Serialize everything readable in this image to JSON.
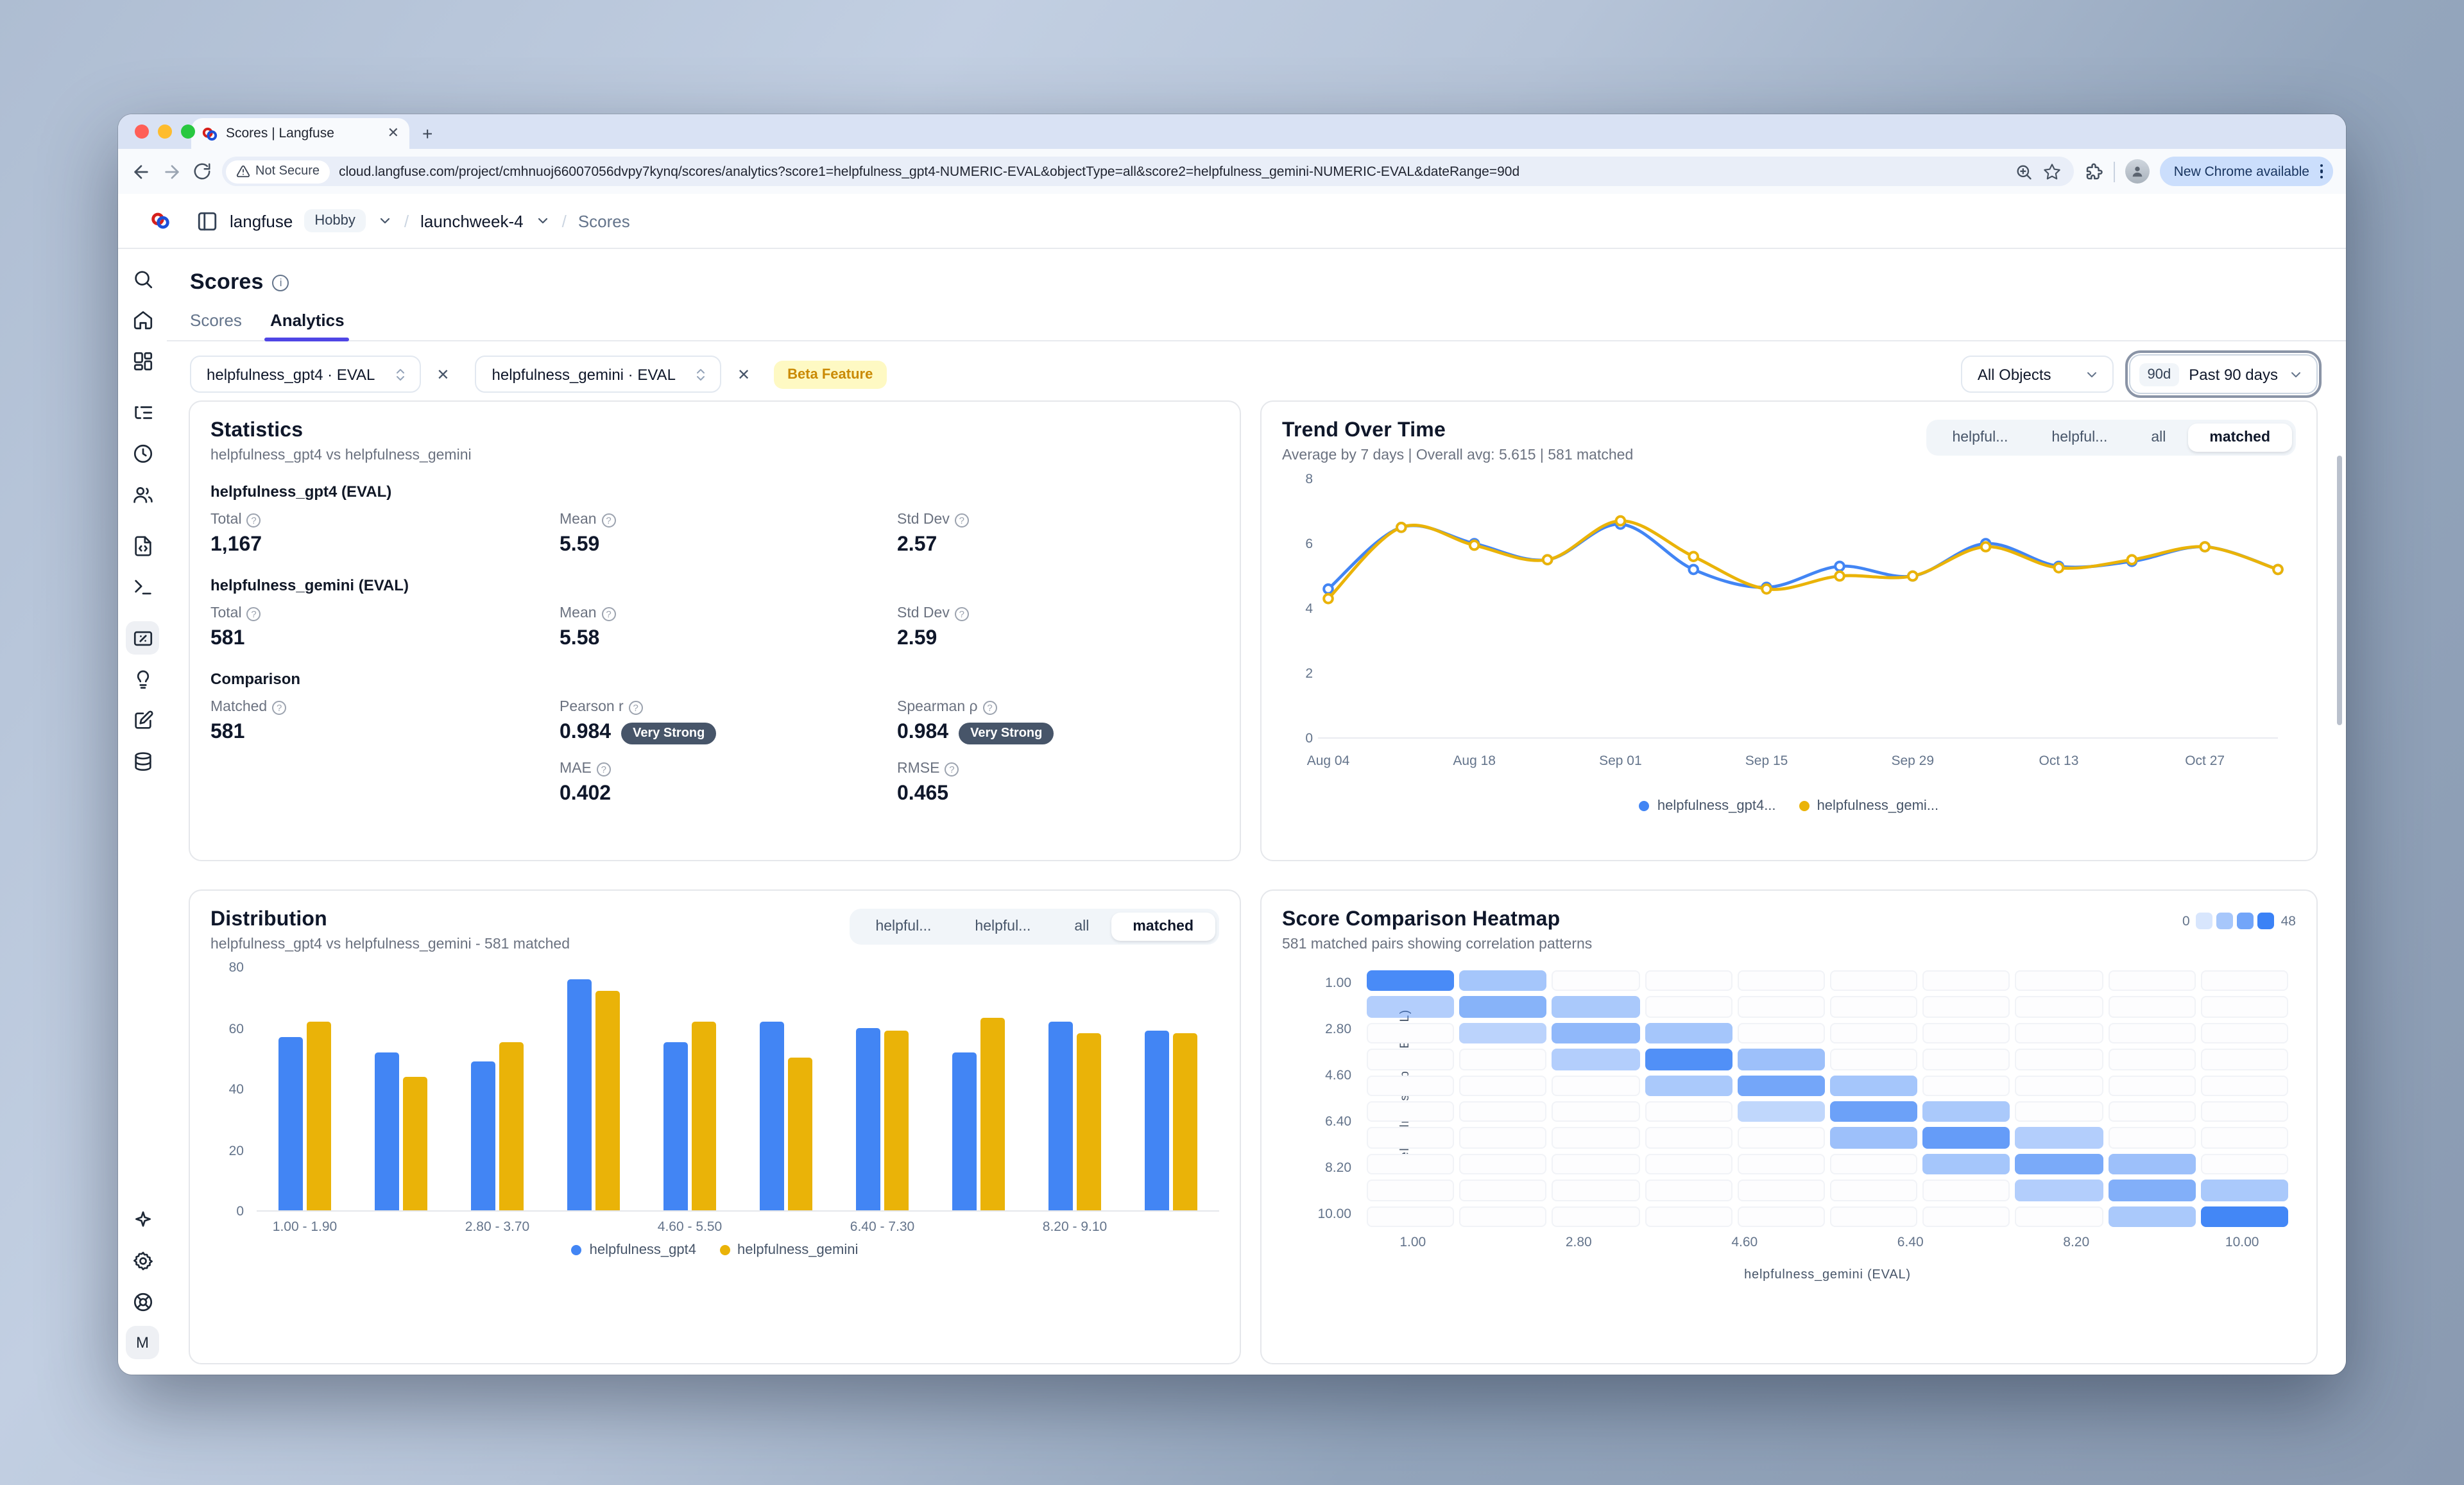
{
  "browser": {
    "tab_title": "Scores | Langfuse",
    "new_tab_label": "+",
    "not_secure": "Not Secure",
    "url": "cloud.langfuse.com/project/cmhnuoj66007056dvpy7kynq/scores/analytics?score1=helpfulness_gpt4-NUMERIC-EVAL&objectType=all&score2=helpfulness_gemini-NUMERIC-EVAL&dateRange=90d",
    "new_chrome": "New Chrome available"
  },
  "breadcrumb": {
    "org": "langfuse",
    "plan_badge": "Hobby",
    "project": "launchweek-4",
    "page": "Scores"
  },
  "sidebar": {
    "top": [
      {
        "name": "search",
        "icon": "search",
        "active": false
      },
      {
        "name": "home",
        "icon": "home",
        "active": false
      },
      {
        "name": "dashboards",
        "icon": "dashboard",
        "active": false
      },
      {
        "name": "tracing",
        "icon": "list-tree",
        "active": false,
        "gap": true
      },
      {
        "name": "sessions",
        "icon": "clock",
        "active": false
      },
      {
        "name": "users",
        "icon": "users",
        "active": false
      },
      {
        "name": "prompts",
        "icon": "file-code",
        "active": false,
        "gap": true
      },
      {
        "name": "playground",
        "icon": "terminal",
        "active": false
      },
      {
        "name": "scores",
        "icon": "square-percent",
        "active": true,
        "gap": true
      },
      {
        "name": "llm-as-judge",
        "icon": "lightbulb",
        "active": false
      },
      {
        "name": "annotation",
        "icon": "square-pen",
        "active": false
      },
      {
        "name": "datasets",
        "icon": "database",
        "active": false
      }
    ],
    "bottom": [
      {
        "name": "ask-ai",
        "icon": "sparkle"
      },
      {
        "name": "settings",
        "icon": "gear"
      },
      {
        "name": "support",
        "icon": "life-buoy"
      }
    ],
    "avatar_initial": "M"
  },
  "page": {
    "title": "Scores",
    "tabs": [
      {
        "label": "Scores",
        "active": false
      },
      {
        "label": "Analytics",
        "active": true
      }
    ]
  },
  "filters": {
    "score1": "helpfulness_gpt4 · EVAL",
    "score2": "helpfulness_gemini · EVAL",
    "close_label": "✕",
    "beta_badge": "Beta Feature",
    "objects": "All Objects",
    "date_badge": "90d",
    "date_range": "Past 90 days"
  },
  "statistics": {
    "title": "Statistics",
    "subtitle": "helpfulness_gpt4 vs helpfulness_gemini",
    "sections": [
      {
        "heading": "helpfulness_gpt4 (EVAL)",
        "stats": [
          {
            "label": "Total",
            "value": "1,167"
          },
          {
            "label": "Mean",
            "value": "5.59"
          },
          {
            "label": "Std Dev",
            "value": "2.57"
          }
        ]
      },
      {
        "heading": "helpfulness_gemini (EVAL)",
        "stats": [
          {
            "label": "Total",
            "value": "581"
          },
          {
            "label": "Mean",
            "value": "5.58"
          },
          {
            "label": "Std Dev",
            "value": "2.59"
          }
        ]
      },
      {
        "heading": "Comparison",
        "stats": [
          {
            "label": "Matched",
            "value": "581"
          },
          {
            "label": "Pearson r",
            "value": "0.984",
            "badge": "Very Strong"
          },
          {
            "label": "Spearman ρ",
            "value": "0.984",
            "badge": "Very Strong"
          },
          {
            "label": "",
            "value": ""
          },
          {
            "label": "MAE",
            "value": "0.402"
          },
          {
            "label": "RMSE",
            "value": "0.465"
          }
        ]
      }
    ]
  },
  "trend_panel": {
    "title": "Trend Over Time",
    "subtitle": "Average by 7 days | Overall avg: 5.615 | 581 matched",
    "segments": [
      "helpful...",
      "helpful...",
      "all",
      "matched"
    ],
    "active_segment": 3
  },
  "distribution_panel": {
    "title": "Distribution",
    "subtitle": "helpfulness_gpt4 vs helpfulness_gemini - 581 matched",
    "segments": [
      "helpful...",
      "helpful...",
      "all",
      "matched"
    ],
    "active_segment": 3
  },
  "heatmap_panel": {
    "title": "Score Comparison Heatmap",
    "subtitle": "581 matched pairs showing correlation patterns",
    "scale_min": "0",
    "scale_max": "48"
  },
  "colors": {
    "series_blue": "#4285f4",
    "series_yellow": "#eab308",
    "heatmap_blue": "#3b82f6",
    "accent_indigo": "#4f46e5"
  },
  "chart_data": [
    {
      "id": "trend",
      "type": "line",
      "title": "Trend Over Time",
      "x": [
        "Aug 04",
        "Aug 11",
        "Aug 18",
        "Aug 25",
        "Sep 01",
        "Sep 08",
        "Sep 15",
        "Sep 22",
        "Sep 29",
        "Oct 06",
        "Oct 13",
        "Oct 20",
        "Oct 27",
        "Nov 03"
      ],
      "x_tick_indices": [
        0,
        2,
        4,
        6,
        8,
        10,
        12
      ],
      "ylim": [
        0,
        8
      ],
      "yticks": [
        0,
        2,
        4,
        6,
        8
      ],
      "legend_position": "bottom",
      "series": [
        {
          "name": "helpfulness_gpt4...",
          "color": "#4285f4",
          "values": [
            4.6,
            6.5,
            6.0,
            5.5,
            6.6,
            5.2,
            4.65,
            5.3,
            5.0,
            6.0,
            5.3,
            5.45,
            5.9,
            5.2
          ]
        },
        {
          "name": "helpfulness_gemi...",
          "color": "#eab308",
          "values": [
            4.3,
            6.5,
            5.95,
            5.5,
            6.7,
            5.6,
            4.6,
            5.0,
            5.0,
            5.9,
            5.25,
            5.5,
            5.9,
            5.2
          ]
        }
      ]
    },
    {
      "id": "distribution",
      "type": "bar",
      "title": "Distribution",
      "categories": [
        "1.00 - 1.90",
        "1.90 - 2.80",
        "2.80 - 3.70",
        "3.70 - 4.60",
        "4.60 - 5.50",
        "5.50 - 6.40",
        "6.40 - 7.30",
        "7.30 - 8.20",
        "8.20 - 9.10",
        "9.10 - 10.00"
      ],
      "x_tick_labels": [
        "1.00 - 1.90",
        "",
        "2.80 - 3.70",
        "",
        "4.60 - 5.50",
        "",
        "6.40 - 7.30",
        "",
        "8.20 - 9.10",
        ""
      ],
      "ylim": [
        0,
        80
      ],
      "yticks": [
        0,
        20,
        40,
        60,
        80
      ],
      "legend_position": "bottom",
      "series": [
        {
          "name": "helpfulness_gpt4",
          "color": "#4285f4",
          "values": [
            57,
            52,
            49,
            76,
            55,
            62,
            60,
            52,
            62,
            59
          ]
        },
        {
          "name": "helpfulness_gemini",
          "color": "#eab308",
          "values": [
            62,
            44,
            55,
            72,
            62,
            50,
            59,
            63,
            58,
            58
          ]
        }
      ]
    },
    {
      "id": "heatmap",
      "type": "heatmap",
      "title": "Score Comparison Heatmap",
      "xlabel": "helpfulness_gemini (EVAL)",
      "ylabel": "helpfulness_gpt4 (EVAL)",
      "x_ticks": [
        "1.00",
        "2.80",
        "4.60",
        "6.40",
        "8.20",
        "10.00"
      ],
      "y_ticks": [
        "1.00",
        "2.80",
        "4.60",
        "6.40",
        "8.20",
        "10.00"
      ],
      "scale": {
        "min": 0,
        "max": 48
      },
      "rows": [
        [
          44,
          18,
          0,
          0,
          0,
          0,
          0,
          0,
          0,
          0
        ],
        [
          14,
          26,
          16,
          0,
          0,
          0,
          0,
          0,
          0,
          0
        ],
        [
          0,
          12,
          24,
          18,
          0,
          0,
          0,
          0,
          0,
          0
        ],
        [
          0,
          0,
          14,
          42,
          20,
          0,
          0,
          0,
          0,
          0
        ],
        [
          0,
          0,
          0,
          16,
          32,
          18,
          0,
          0,
          0,
          0
        ],
        [
          0,
          0,
          0,
          0,
          10,
          34,
          16,
          0,
          0,
          0
        ],
        [
          0,
          0,
          0,
          0,
          0,
          20,
          36,
          14,
          0,
          0
        ],
        [
          0,
          0,
          0,
          0,
          0,
          0,
          18,
          30,
          20,
          0
        ],
        [
          0,
          0,
          0,
          0,
          0,
          0,
          0,
          14,
          28,
          16
        ],
        [
          0,
          0,
          0,
          0,
          0,
          0,
          0,
          0,
          16,
          46
        ]
      ]
    }
  ]
}
